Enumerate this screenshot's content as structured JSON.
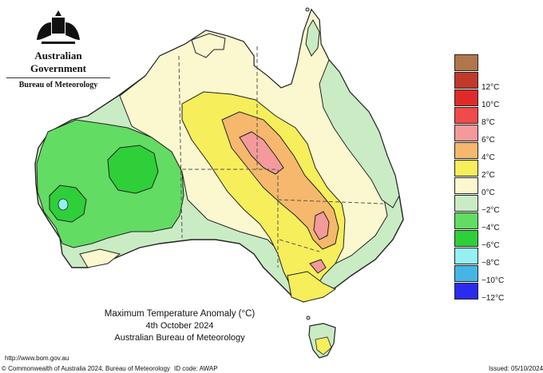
{
  "header": {
    "government": "Australian Government",
    "bureau": "Bureau of Meteorology",
    "crest_icon": "coat-of-arms-icon"
  },
  "map": {
    "title": "Maximum Temperature Anomaly (°C)",
    "date": "4th October 2024",
    "source": "Australian Bureau of Meteorology"
  },
  "legend": {
    "items": [
      {
        "label": "12°C",
        "color": "#c0392b"
      },
      {
        "label": "10°C",
        "color": "#e02a2a"
      },
      {
        "label": "8°C",
        "color": "#f04a4a"
      },
      {
        "label": "6°C",
        "color": "#f49a9a"
      },
      {
        "label": "4°C",
        "color": "#f5b86c"
      },
      {
        "label": "2°C",
        "color": "#f6ee5a"
      },
      {
        "label": "0°C",
        "color": "#fbf7cf"
      },
      {
        "label": "−2°C",
        "color": "#c9ecc4"
      },
      {
        "label": "−4°C",
        "color": "#62dc62"
      },
      {
        "label": "−6°C",
        "color": "#2fcf3a"
      },
      {
        "label": "−8°C",
        "color": "#95f1f1"
      },
      {
        "label": "−10°C",
        "color": "#44b6e6"
      },
      {
        "label": "−12°C",
        "color": "#8a7cf0"
      }
    ],
    "top_color": "#b1764a",
    "bottom_color": "#2b2bf0"
  },
  "footer": {
    "url": "http://www.bom.gov.au",
    "copyright": "© Commonwealth of Australia 2024, Bureau of Meteorology",
    "id_code": "ID code: AWAP",
    "issued": "Issued: 05/10/2024"
  }
}
